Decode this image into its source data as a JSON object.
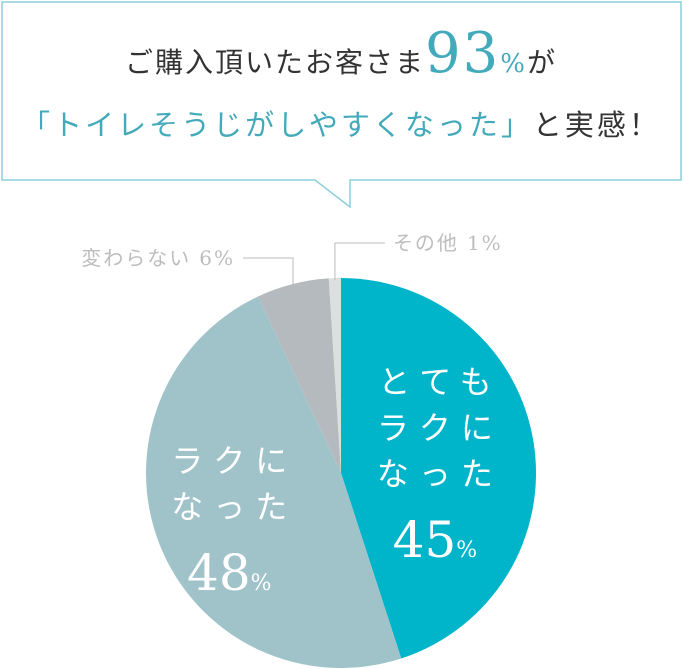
{
  "headline": {
    "before": "ご購入頂いたお客さま",
    "highlight": "93",
    "unit": "%",
    "after": "が",
    "quote": "「トイレそうじがしやすくなった」",
    "ending": "と実感！"
  },
  "chart_data": {
    "type": "pie",
    "categories": [
      "とてもラクになった",
      "ラクになった",
      "変わらない",
      "その他"
    ],
    "values": [
      45,
      48,
      6,
      1
    ],
    "unit": "%",
    "colors": [
      "#00b4c9",
      "#9fc3c9",
      "#b4babd",
      "#dcdfe0"
    ]
  }
}
